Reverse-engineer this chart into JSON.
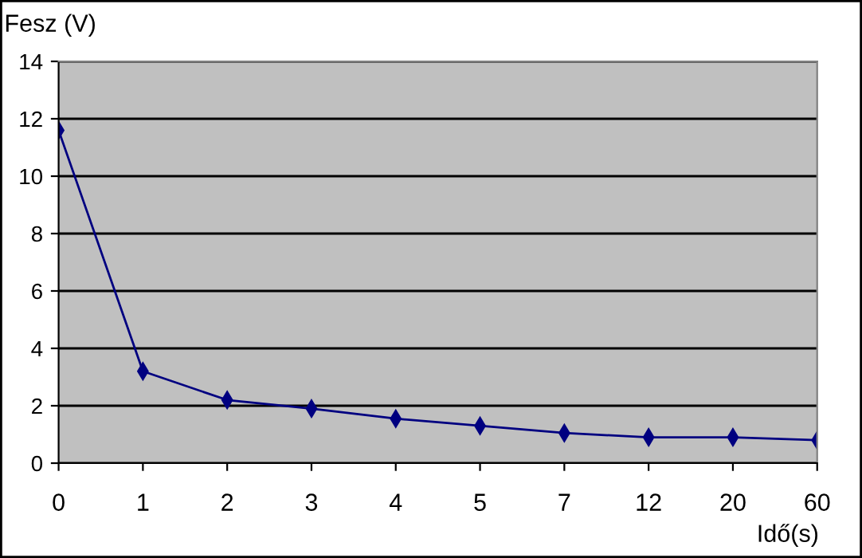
{
  "chart_data": {
    "type": "line",
    "ylabel": "Fesz (V)",
    "xlabel": "Idő(s)",
    "categories": [
      "0",
      "1",
      "2",
      "3",
      "4",
      "5",
      "7",
      "12",
      "20",
      "60"
    ],
    "series": [
      {
        "color": "#000080",
        "values": [
          11.6,
          3.2,
          2.2,
          1.9,
          1.55,
          1.3,
          1.05,
          0.9,
          0.9,
          0.8
        ]
      }
    ],
    "ylim": [
      0,
      14
    ],
    "yticks": [
      0,
      2,
      4,
      6,
      8,
      10,
      12,
      14
    ],
    "grid": "y",
    "marker": "diamond",
    "line_style": "solid",
    "legend": false
  }
}
